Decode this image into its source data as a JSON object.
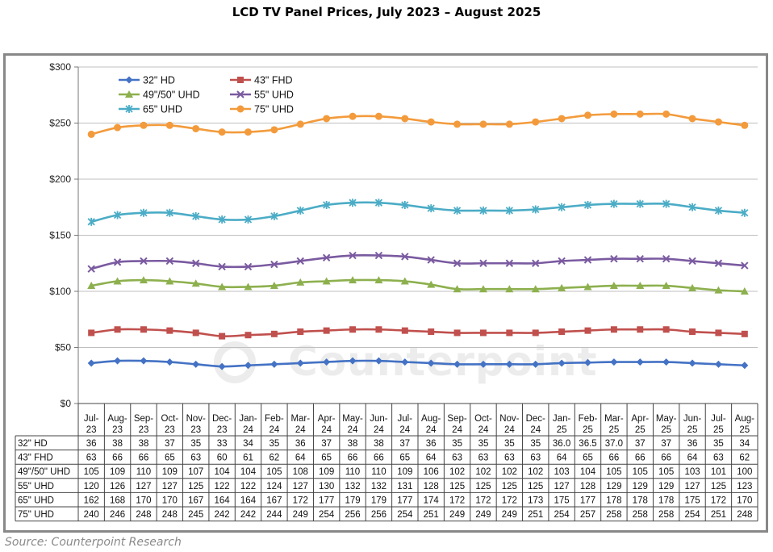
{
  "title": "LCD TV Panel Prices, July 2023 – August 2025",
  "source": "Source: Counterpoint Research",
  "watermark": "Counterpoint",
  "chart_data": {
    "type": "line",
    "categories": [
      [
        "Jul-",
        "23"
      ],
      [
        "Aug-",
        "23"
      ],
      [
        "Sep-",
        "23"
      ],
      [
        "Oct-",
        "23"
      ],
      [
        "Nov-",
        "23"
      ],
      [
        "Dec-",
        "23"
      ],
      [
        "Jan-",
        "24"
      ],
      [
        "Feb-",
        "24"
      ],
      [
        "Mar-",
        "24"
      ],
      [
        "Apr-",
        "24"
      ],
      [
        "May-",
        "24"
      ],
      [
        "Jun-",
        "24"
      ],
      [
        "Jul-",
        "24"
      ],
      [
        "Aug-",
        "24"
      ],
      [
        "Sep-",
        "24"
      ],
      [
        "Oct-",
        "24"
      ],
      [
        "Nov-",
        "24"
      ],
      [
        "Dec-",
        "24"
      ],
      [
        "Jan-",
        "25"
      ],
      [
        "Feb-",
        "25"
      ],
      [
        "Mar-",
        "25"
      ],
      [
        "Apr-",
        "25"
      ],
      [
        "May-",
        "25"
      ],
      [
        "Jun-",
        "25"
      ],
      [
        "Jul-",
        "25"
      ],
      [
        "Aug-",
        "25"
      ]
    ],
    "ylim": [
      0,
      300
    ],
    "yticks": [
      "$0",
      "$50",
      "$100",
      "$150",
      "$200",
      "$250",
      "$300"
    ],
    "grid": true,
    "legend_position": "top-left",
    "series": [
      {
        "name": "32\" HD",
        "color": "#4472c4",
        "marker": "diamond",
        "values": [
          36,
          38,
          38,
          37,
          35,
          33,
          34,
          35,
          36,
          37,
          38,
          38,
          37,
          36,
          35,
          35,
          35,
          35,
          36.0,
          36.5,
          37.0,
          37,
          37,
          36,
          35,
          34
        ],
        "labels": [
          "36",
          "38",
          "38",
          "37",
          "35",
          "33",
          "34",
          "35",
          "36",
          "37",
          "38",
          "38",
          "37",
          "36",
          "35",
          "35",
          "35",
          "35",
          "36.0",
          "36.5",
          "37.0",
          "37",
          "37",
          "36",
          "35",
          "34"
        ]
      },
      {
        "name": "43\" FHD",
        "color": "#c0504d",
        "marker": "square",
        "values": [
          63,
          66,
          66,
          65,
          63,
          60,
          61,
          62,
          64,
          65,
          66,
          66,
          65,
          64,
          63,
          63,
          63,
          63,
          64,
          65,
          66,
          66,
          66,
          64,
          63,
          62
        ],
        "labels": [
          "63",
          "66",
          "66",
          "65",
          "63",
          "60",
          "61",
          "62",
          "64",
          "65",
          "66",
          "66",
          "65",
          "64",
          "63",
          "63",
          "63",
          "63",
          "64",
          "65",
          "66",
          "66",
          "66",
          "64",
          "63",
          "62"
        ]
      },
      {
        "name": "49\"/50\" UHD",
        "color": "#8db04e",
        "marker": "triangle",
        "values": [
          105,
          109,
          110,
          109,
          107,
          104,
          104,
          105,
          108,
          109,
          110,
          110,
          109,
          106,
          102,
          102,
          102,
          102,
          103,
          104,
          105,
          105,
          105,
          103,
          101,
          100
        ],
        "labels": [
          "105",
          "109",
          "110",
          "109",
          "107",
          "104",
          "104",
          "105",
          "108",
          "109",
          "110",
          "110",
          "109",
          "106",
          "102",
          "102",
          "102",
          "102",
          "103",
          "104",
          "105",
          "105",
          "105",
          "103",
          "101",
          "100"
        ]
      },
      {
        "name": "55\" UHD",
        "color": "#7a5aa0",
        "marker": "x",
        "values": [
          120,
          126,
          127,
          127,
          125,
          122,
          122,
          124,
          127,
          130,
          132,
          132,
          131,
          128,
          125,
          125,
          125,
          125,
          127,
          128,
          129,
          129,
          129,
          127,
          125,
          123
        ],
        "labels": [
          "120",
          "126",
          "127",
          "127",
          "125",
          "122",
          "122",
          "124",
          "127",
          "130",
          "132",
          "132",
          "131",
          "128",
          "125",
          "125",
          "125",
          "125",
          "127",
          "128",
          "129",
          "129",
          "129",
          "127",
          "125",
          "123"
        ]
      },
      {
        "name": "65\" UHD",
        "color": "#4bacc6",
        "marker": "star",
        "values": [
          162,
          168,
          170,
          170,
          167,
          164,
          164,
          167,
          172,
          177,
          179,
          179,
          177,
          174,
          172,
          172,
          172,
          173,
          175,
          177,
          178,
          178,
          178,
          175,
          172,
          170
        ],
        "labels": [
          "162",
          "168",
          "170",
          "170",
          "167",
          "164",
          "164",
          "167",
          "172",
          "177",
          "179",
          "179",
          "177",
          "174",
          "172",
          "172",
          "172",
          "173",
          "175",
          "177",
          "178",
          "178",
          "178",
          "175",
          "172",
          "170"
        ]
      },
      {
        "name": "75\" UHD",
        "color": "#f39b3c",
        "marker": "circle",
        "values": [
          240,
          246,
          248,
          248,
          245,
          242,
          242,
          244,
          249,
          254,
          256,
          256,
          254,
          251,
          249,
          249,
          249,
          251,
          254,
          257,
          258,
          258,
          258,
          254,
          251,
          248
        ],
        "labels": [
          "240",
          "246",
          "248",
          "248",
          "245",
          "242",
          "242",
          "244",
          "249",
          "254",
          "256",
          "256",
          "254",
          "251",
          "249",
          "249",
          "249",
          "251",
          "254",
          "257",
          "258",
          "258",
          "258",
          "254",
          "251",
          "248"
        ]
      }
    ]
  }
}
